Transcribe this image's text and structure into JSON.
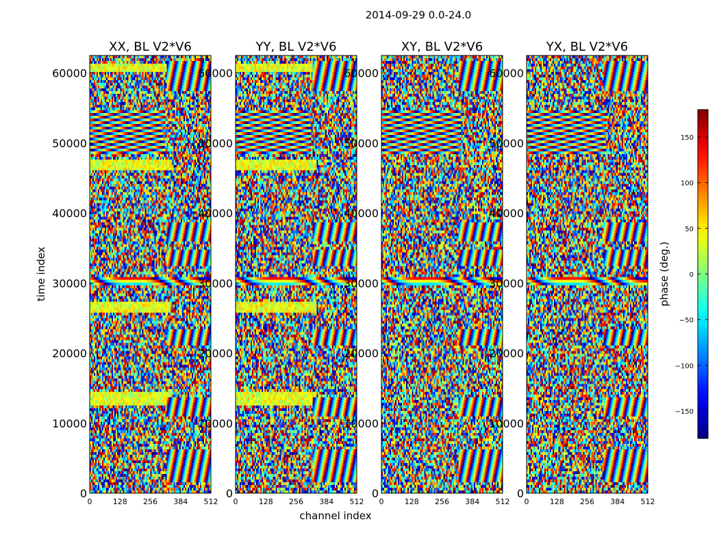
{
  "figure": {
    "suptitle": "2014-09-29 0.0-24.0",
    "xlabel": "channel index",
    "ylabel": "time index",
    "colorbar_label": "phase (deg.)"
  },
  "chart_data": [
    {
      "type": "heatmap",
      "title": "XX, BL V2*V6",
      "x": {
        "label": "channel index",
        "lim": [
          0,
          512
        ],
        "ticks": [
          0,
          128,
          256,
          384,
          512
        ]
      },
      "y": {
        "label": "time index",
        "lim": [
          0,
          62500
        ],
        "ticks": [
          0,
          10000,
          20000,
          30000,
          40000,
          50000,
          60000
        ]
      },
      "z": {
        "label": "phase (deg.)",
        "lim": [
          -180,
          180
        ],
        "colormap": "jet"
      }
    },
    {
      "type": "heatmap",
      "title": "YY, BL V2*V6",
      "x": {
        "label": "channel index",
        "lim": [
          0,
          512
        ],
        "ticks": [
          0,
          128,
          256,
          384,
          512
        ]
      },
      "y": {
        "lim": [
          0,
          62500
        ],
        "ticks": [
          0,
          10000,
          20000,
          30000,
          40000,
          50000,
          60000
        ]
      },
      "z": {
        "label": "phase (deg.)",
        "lim": [
          -180,
          180
        ],
        "colormap": "jet"
      }
    },
    {
      "type": "heatmap",
      "title": "XY, BL V2*V6",
      "x": {
        "lim": [
          0,
          512
        ],
        "ticks": [
          0,
          128,
          256,
          384,
          512
        ]
      },
      "y": {
        "lim": [
          0,
          62500
        ],
        "ticks": [
          0,
          10000,
          20000,
          30000,
          40000,
          50000,
          60000
        ]
      },
      "z": {
        "label": "phase (deg.)",
        "lim": [
          -180,
          180
        ],
        "colormap": "jet"
      }
    },
    {
      "type": "heatmap",
      "title": "YX, BL V2*V6",
      "x": {
        "lim": [
          0,
          512
        ],
        "ticks": [
          0,
          128,
          256,
          384,
          512
        ]
      },
      "y": {
        "lim": [
          0,
          62500
        ],
        "ticks": [
          0,
          10000,
          20000,
          30000,
          40000,
          50000,
          60000
        ]
      },
      "z": {
        "label": "phase (deg.)",
        "lim": [
          -180,
          180
        ],
        "colormap": "jet"
      }
    }
  ],
  "colorbar": {
    "lim": [
      -180,
      180
    ],
    "ticks": [
      150,
      100,
      50,
      0,
      -50,
      -100,
      -150
    ],
    "tick_labels": [
      "150",
      "100",
      "50",
      "0",
      "−50",
      "−100",
      "−150"
    ],
    "colormap": "jet"
  }
}
